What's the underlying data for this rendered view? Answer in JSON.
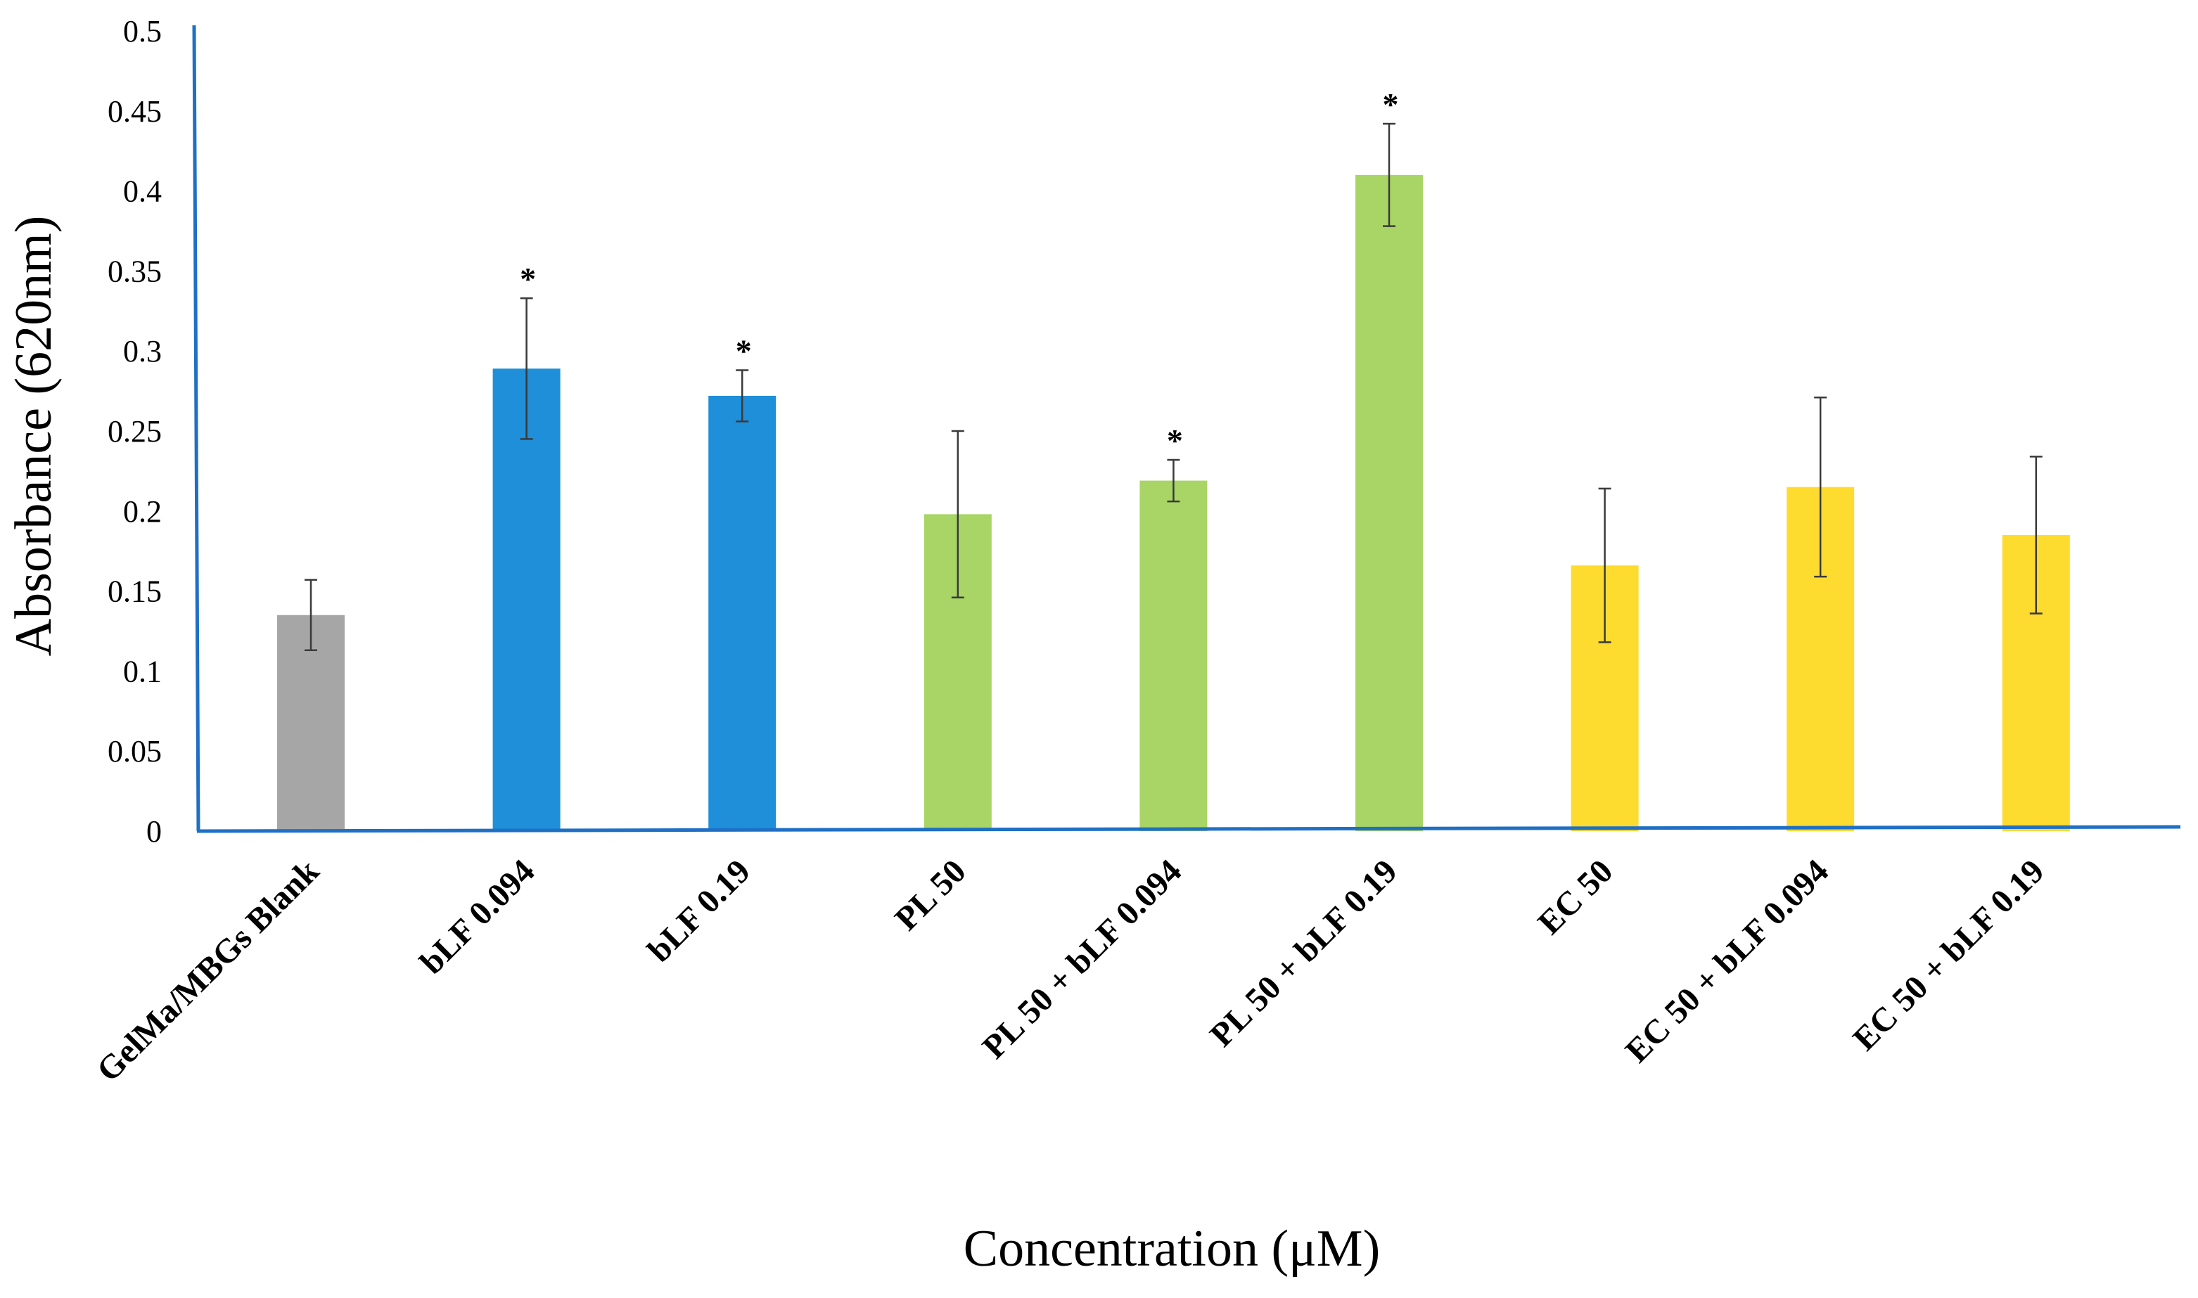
{
  "chart_data": {
    "type": "bar",
    "title": "",
    "xlabel": "Concentration (μM)",
    "ylabel": "Absorbance (620nm)",
    "ylim": [
      0,
      0.5
    ],
    "y_ticks": [
      "0",
      "0.05",
      "0.1",
      "0.15",
      "0.2",
      "0.25",
      "0.3",
      "0.35",
      "0.4",
      "0.45",
      "0.5"
    ],
    "categories": [
      "GelMa/MBGs Blank",
      "bLF 0.094",
      "bLF 0.19",
      "PL 50",
      "PL 50 + bLF 0.094",
      "PL 50 + bLF 0.19",
      "EC 50",
      "EC 50 + bLF 0.094",
      "EC 50  + bLF 0.19"
    ],
    "values": [
      0.135,
      0.289,
      0.272,
      0.198,
      0.219,
      0.41,
      0.166,
      0.215,
      0.185
    ],
    "errors": [
      0.022,
      0.044,
      0.016,
      0.052,
      0.013,
      0.032,
      0.048,
      0.056,
      0.049
    ],
    "significance": [
      "",
      "*",
      "*",
      "",
      "*",
      "*",
      "",
      "",
      ""
    ],
    "colors": [
      "#a6a6a6",
      "#1f8fd9",
      "#1f8fd9",
      "#a8d566",
      "#a8d566",
      "#a8d566",
      "#fedb2f",
      "#fedb2f",
      "#fedb2f"
    ],
    "axis_color": "#1f6fc5",
    "grid": false
  }
}
